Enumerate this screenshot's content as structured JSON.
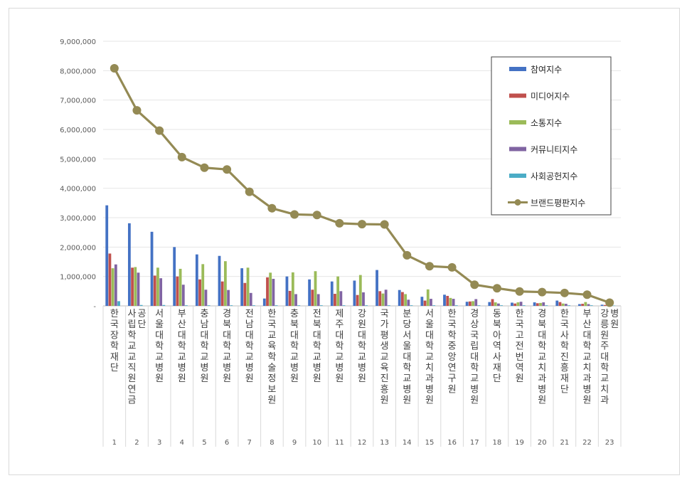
{
  "chart_data": {
    "type": "bar",
    "title": "",
    "xlabel": "",
    "ylabel": "",
    "ylim": [
      0,
      9000000
    ],
    "yticks": [
      "-",
      "1,000,000",
      "2,000,000",
      "3,000,000",
      "4,000,000",
      "5,000,000",
      "6,000,000",
      "7,000,000",
      "8,000,000",
      "9,000,000"
    ],
    "grid": true,
    "legend_position": "top-right",
    "numbers": [
      "1",
      "2",
      "3",
      "4",
      "5",
      "6",
      "7",
      "8",
      "9",
      "10",
      "11",
      "12",
      "13",
      "14",
      "15",
      "16",
      "17",
      "18",
      "19",
      "20",
      "21",
      "22",
      "23"
    ],
    "categories": [
      "한국장학재단",
      "사립학교교직원연금공단",
      "서울대학교병원",
      "부산대학교병원",
      "충남대학교병원",
      "경북대학교병원",
      "전남대학교병원",
      "한국교육학술정보원",
      "충북대학교병원",
      "전북대학교병원",
      "제주대학교병원",
      "강원대학교병원",
      "국가평생교육진흥원",
      "분당서울대학교병원",
      "서울대학교치과병원",
      "한국학중앙연구원",
      "경상국립대학교병원",
      "동북아역사재단",
      "한국고전번역원",
      "경북대학교치과병원",
      "한국사학진흥재단",
      "부산대학교치과병원",
      "강릉원주대학교치과병원"
    ],
    "series": [
      {
        "name": "참여지수",
        "color": "#4472c4",
        "kind": "bar",
        "values": [
          3420000,
          2810000,
          2520000,
          2000000,
          1750000,
          1700000,
          1280000,
          250000,
          1000000,
          900000,
          830000,
          860000,
          1220000,
          540000,
          310000,
          380000,
          140000,
          130000,
          110000,
          120000,
          180000,
          60000,
          40000
        ]
      },
      {
        "name": "미디어지수",
        "color": "#c0504d",
        "kind": "bar",
        "values": [
          1780000,
          1300000,
          1030000,
          1000000,
          900000,
          830000,
          780000,
          970000,
          510000,
          550000,
          410000,
          370000,
          500000,
          470000,
          180000,
          340000,
          150000,
          230000,
          80000,
          90000,
          130000,
          70000,
          30000
        ]
      },
      {
        "name": "소통지수",
        "color": "#9bbb59",
        "kind": "bar",
        "values": [
          1280000,
          1320000,
          1300000,
          1260000,
          1420000,
          1520000,
          1300000,
          1130000,
          1140000,
          1180000,
          1000000,
          1050000,
          420000,
          400000,
          560000,
          270000,
          160000,
          120000,
          120000,
          100000,
          80000,
          130000,
          30000
        ]
      },
      {
        "name": "커뮤니티지수",
        "color": "#8064a2",
        "kind": "bar",
        "values": [
          1410000,
          1130000,
          940000,
          720000,
          550000,
          540000,
          440000,
          920000,
          400000,
          400000,
          500000,
          460000,
          550000,
          210000,
          240000,
          240000,
          230000,
          80000,
          140000,
          120000,
          70000,
          60000,
          20000
        ]
      },
      {
        "name": "사회공헌지수",
        "color": "#4bacc6",
        "kind": "bar",
        "values": [
          160000,
          30000,
          30000,
          20000,
          20000,
          20000,
          20000,
          20000,
          20000,
          20000,
          20000,
          20000,
          20000,
          20000,
          20000,
          20000,
          20000,
          20000,
          20000,
          20000,
          20000,
          20000,
          10000
        ]
      },
      {
        "name": "브랜드평판지수",
        "color": "#948a54",
        "kind": "line",
        "values": [
          8080000,
          6650000,
          5960000,
          5060000,
          4700000,
          4640000,
          3880000,
          3320000,
          3110000,
          3090000,
          2810000,
          2780000,
          2770000,
          1720000,
          1350000,
          1310000,
          720000,
          600000,
          490000,
          470000,
          440000,
          380000,
          110000
        ]
      }
    ]
  }
}
